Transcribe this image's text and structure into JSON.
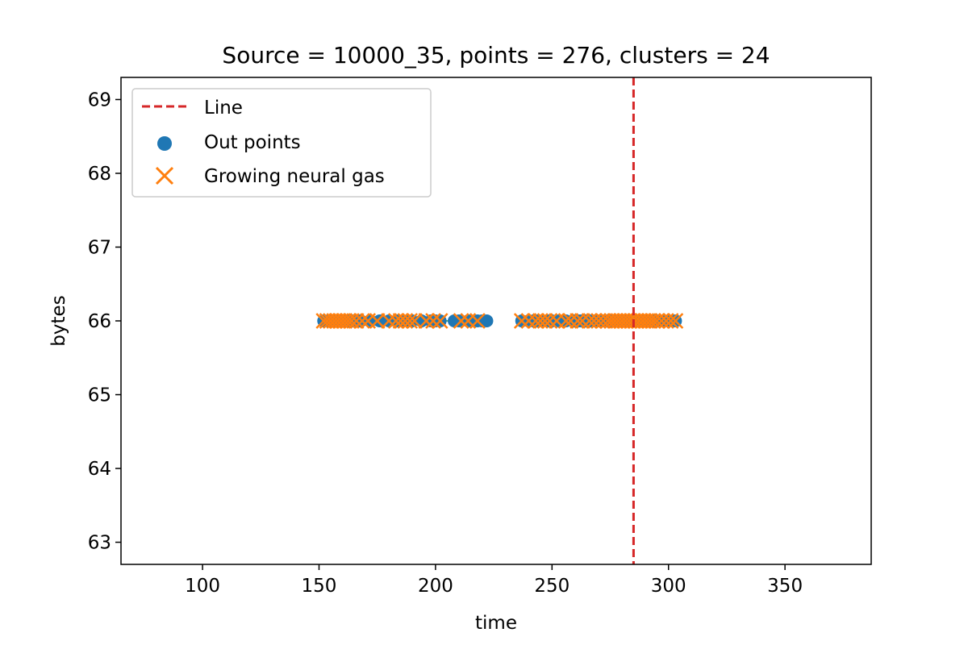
{
  "chart_data": {
    "type": "scatter",
    "title": "Source = 10000_35, points = 276, clusters = 24",
    "xlabel": "time",
    "ylabel": "bytes",
    "xlim": [
      65,
      387
    ],
    "ylim": [
      62.7,
      69.3
    ],
    "xticks": [
      100,
      150,
      200,
      250,
      300,
      350
    ],
    "yticks": [
      63,
      64,
      65,
      66,
      67,
      68,
      69
    ],
    "grid": false,
    "legend_position": "upper-left",
    "vline": {
      "name": "Line",
      "x": 285,
      "color": "#d62728",
      "style": "dashed"
    },
    "series": [
      {
        "name": "Out points",
        "marker": "circle",
        "color": "#1f77b4",
        "x": [
          152,
          154,
          156,
          158,
          160,
          162,
          164,
          166,
          168,
          172,
          176,
          180,
          184,
          186,
          188,
          190,
          194,
          198,
          200,
          202,
          208,
          210,
          214,
          218,
          220,
          222,
          237,
          240,
          242,
          244,
          246,
          248,
          250,
          253,
          256,
          259,
          262,
          264,
          266,
          268,
          270,
          272,
          274,
          276,
          278,
          280,
          282,
          284,
          286,
          288,
          290,
          292,
          294,
          296,
          298,
          300,
          303
        ],
        "y": [
          66,
          66,
          66,
          66,
          66,
          66,
          66,
          66,
          66,
          66,
          66,
          66,
          66,
          66,
          66,
          66,
          66,
          66,
          66,
          66,
          66,
          66,
          66,
          66,
          66,
          66,
          66,
          66,
          66,
          66,
          66,
          66,
          66,
          66,
          66,
          66,
          66,
          66,
          66,
          66,
          66,
          66,
          66,
          66,
          66,
          66,
          66,
          66,
          66,
          66,
          66,
          66,
          66,
          66,
          66,
          66,
          66
        ]
      },
      {
        "name": "Growing neural gas",
        "marker": "x",
        "color": "#ff7f0e",
        "x": [
          152,
          153.5,
          155,
          156.5,
          158,
          159.5,
          161,
          162.5,
          164,
          166,
          168.5,
          171,
          175,
          180,
          183,
          185,
          187,
          189,
          191,
          196,
          199,
          202,
          211,
          214,
          218,
          237,
          240,
          243,
          245,
          247,
          249,
          252,
          256,
          258,
          261,
          263,
          266,
          268,
          270,
          272,
          274,
          275.5,
          277,
          278.5,
          280,
          281.5,
          283,
          284.5,
          286,
          287.5,
          289,
          290.5,
          292,
          293.5,
          295,
          297,
          299,
          301,
          303
        ],
        "y": [
          66,
          66,
          66,
          66,
          66,
          66,
          66,
          66,
          66,
          66,
          66,
          66,
          66,
          66,
          66,
          66,
          66,
          66,
          66,
          66,
          66,
          66,
          66,
          66,
          66,
          66,
          66,
          66,
          66,
          66,
          66,
          66,
          66,
          66,
          66,
          66,
          66,
          66,
          66,
          66,
          66,
          66,
          66,
          66,
          66,
          66,
          66,
          66,
          66,
          66,
          66,
          66,
          66,
          66,
          66,
          66,
          66,
          66,
          66
        ]
      }
    ],
    "edges": {
      "color": "#2ca02c",
      "y": 66,
      "segments": [
        [
          152,
          222
        ],
        [
          237,
          303
        ]
      ]
    }
  }
}
